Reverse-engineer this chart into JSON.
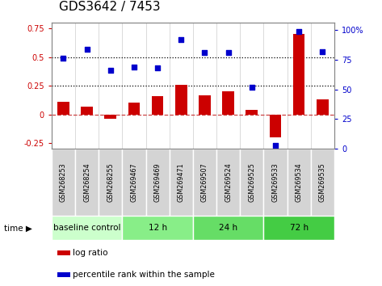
{
  "title": "GDS3642 / 7453",
  "samples": [
    "GSM268253",
    "GSM268254",
    "GSM268255",
    "GSM269467",
    "GSM269469",
    "GSM269471",
    "GSM269507",
    "GSM269524",
    "GSM269525",
    "GSM269533",
    "GSM269534",
    "GSM269535"
  ],
  "log_ratio": [
    0.11,
    0.07,
    -0.04,
    0.1,
    0.16,
    0.26,
    0.17,
    0.2,
    0.04,
    -0.2,
    0.7,
    0.13
  ],
  "percentile_rank": [
    76,
    84,
    66,
    69,
    68,
    92,
    81,
    81,
    52,
    3,
    99,
    82
  ],
  "bar_color": "#cc0000",
  "dot_color": "#0000cc",
  "ylim_left": [
    -0.3,
    0.8
  ],
  "ylim_right": [
    0,
    106
  ],
  "yticks_left": [
    -0.25,
    0.0,
    0.25,
    0.5,
    0.75
  ],
  "yticks_right": [
    0,
    25,
    50,
    75,
    100
  ],
  "hlines": [
    0.0,
    0.25,
    0.5
  ],
  "hline_styles": [
    "dashed",
    "dotted",
    "dotted"
  ],
  "hline_colors": [
    "#cc4444",
    "black",
    "black"
  ],
  "groups": [
    {
      "label": "baseline control",
      "start": 0,
      "end": 3,
      "color": "#ccffcc"
    },
    {
      "label": "12 h",
      "start": 3,
      "end": 6,
      "color": "#88ee88"
    },
    {
      "label": "24 h",
      "start": 6,
      "end": 9,
      "color": "#66dd66"
    },
    {
      "label": "72 h",
      "start": 9,
      "end": 12,
      "color": "#44cc44"
    }
  ],
  "legend_items": [
    {
      "label": "log ratio",
      "color": "#cc0000"
    },
    {
      "label": "percentile rank within the sample",
      "color": "#0000cc"
    }
  ],
  "background_color": "#ffffff",
  "plot_bg_color": "#ffffff",
  "sample_cell_color": "#d4d4d4",
  "tick_label_color_left": "#cc0000",
  "tick_label_color_right": "#0000cc",
  "title_fontsize": 11,
  "bar_width": 0.5
}
